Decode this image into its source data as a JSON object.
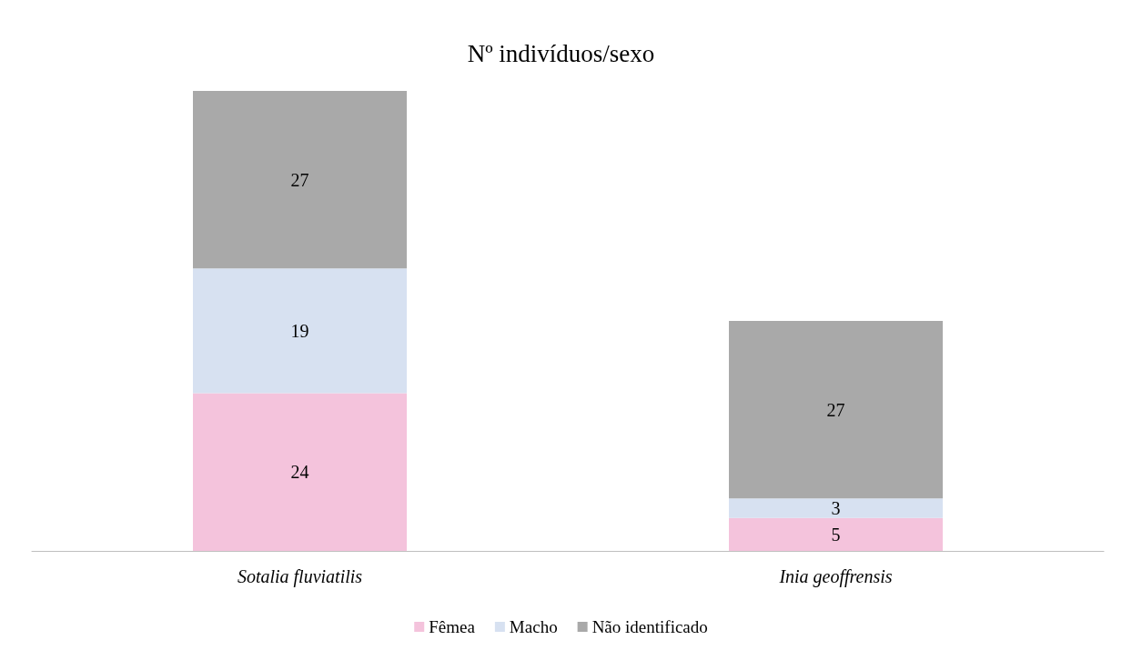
{
  "chart_data": {
    "type": "bar",
    "title": "Nº indivíduos/sexo",
    "categories": [
      "Sotalia fluviatilis",
      "Inia geoffrensis"
    ],
    "series": [
      {
        "name": "Fêmea",
        "color": "#f4c3dc",
        "values": [
          24,
          5
        ]
      },
      {
        "name": "Macho",
        "color": "#d7e1f1",
        "values": [
          19,
          3
        ]
      },
      {
        "name": "Não identificado",
        "color": "#a9a9a9",
        "values": [
          27,
          27
        ]
      }
    ],
    "stacked": true,
    "data_labels": true,
    "grid": false,
    "legend": "bottom"
  }
}
